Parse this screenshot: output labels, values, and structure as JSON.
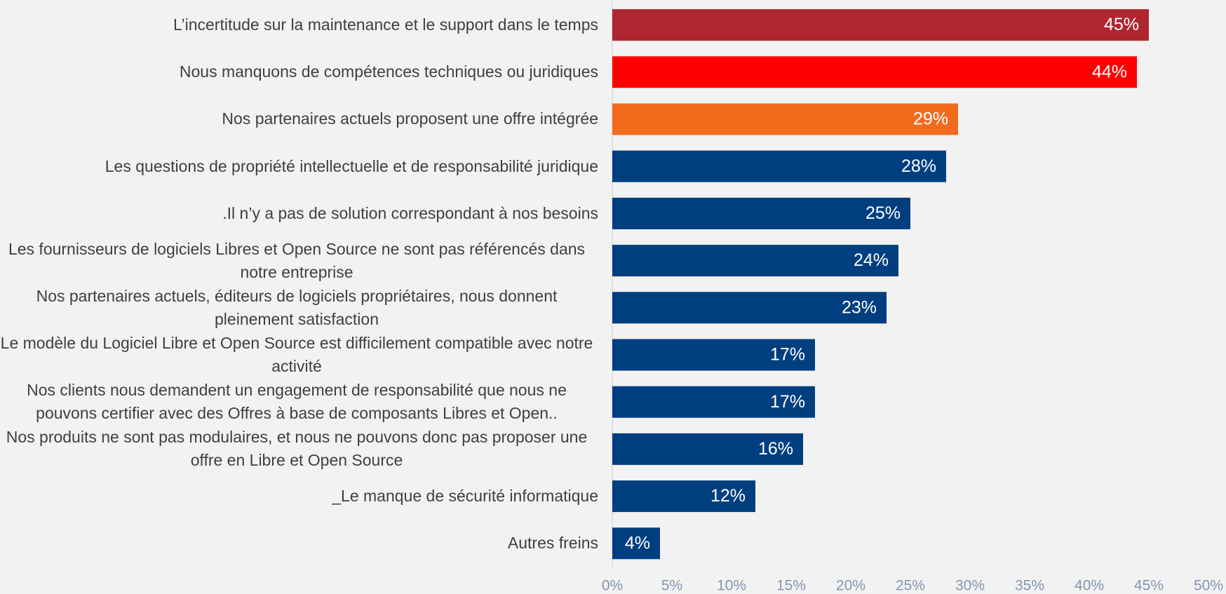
{
  "chart_data": {
    "type": "bar",
    "orientation": "horizontal",
    "categories": [
      "L’incertitude sur la maintenance et le support dans le temps",
      "Nous manquons de compétences techniques ou juridiques",
      "Nos partenaires actuels proposent une offre intégrée",
      "Les questions de propriété intellectuelle et de responsabilité juridique",
      ".Il n’y a pas de solution correspondant à nos besoins",
      "Les fournisseurs de logiciels Libres et Open Source ne sont pas référencés dans notre entreprise",
      "Nos partenaires actuels, éditeurs de logiciels propriétaires, nous donnent pleinement satisfaction",
      "Le modèle du Logiciel Libre et Open Source est difficilement compatible avec notre activité",
      "Nos clients nous demandent un engagement de responsabilité que nous ne pouvons certifier avec des Offres à base de composants Libres et Open..",
      "Nos produits ne sont pas modulaires, et nous ne pouvons donc pas proposer une offre en Libre et Open Source",
      "_Le manque de sécurité informatique",
      "Autres freins"
    ],
    "values": [
      45,
      44,
      29,
      28,
      25,
      24,
      23,
      17,
      17,
      16,
      12,
      4
    ],
    "value_labels": [
      "45%",
      "44%",
      "29%",
      "28%",
      "25%",
      "24%",
      "23%",
      "17%",
      "17%",
      "16%",
      "12%",
      "4%"
    ],
    "colors": [
      "#b0262f",
      "#ff0000",
      "#f26b1d",
      "#003f7f",
      "#003f7f",
      "#003f7f",
      "#003f7f",
      "#003f7f",
      "#003f7f",
      "#003f7f",
      "#003f7f",
      "#003f7f"
    ],
    "xlim": [
      0,
      50
    ],
    "xticks": [
      {
        "value": 0,
        "label": "0%"
      },
      {
        "value": 5,
        "label": "5%"
      },
      {
        "value": 10,
        "label": "10%"
      },
      {
        "value": 15,
        "label": "15%"
      },
      {
        "value": 20,
        "label": "20%"
      },
      {
        "value": 25,
        "label": "25%"
      },
      {
        "value": 30,
        "label": "30%"
      },
      {
        "value": 35,
        "label": "35%"
      },
      {
        "value": 40,
        "label": "40%"
      },
      {
        "value": 45,
        "label": "45%"
      },
      {
        "value": 50,
        "label": "50%"
      }
    ],
    "grid": false
  }
}
